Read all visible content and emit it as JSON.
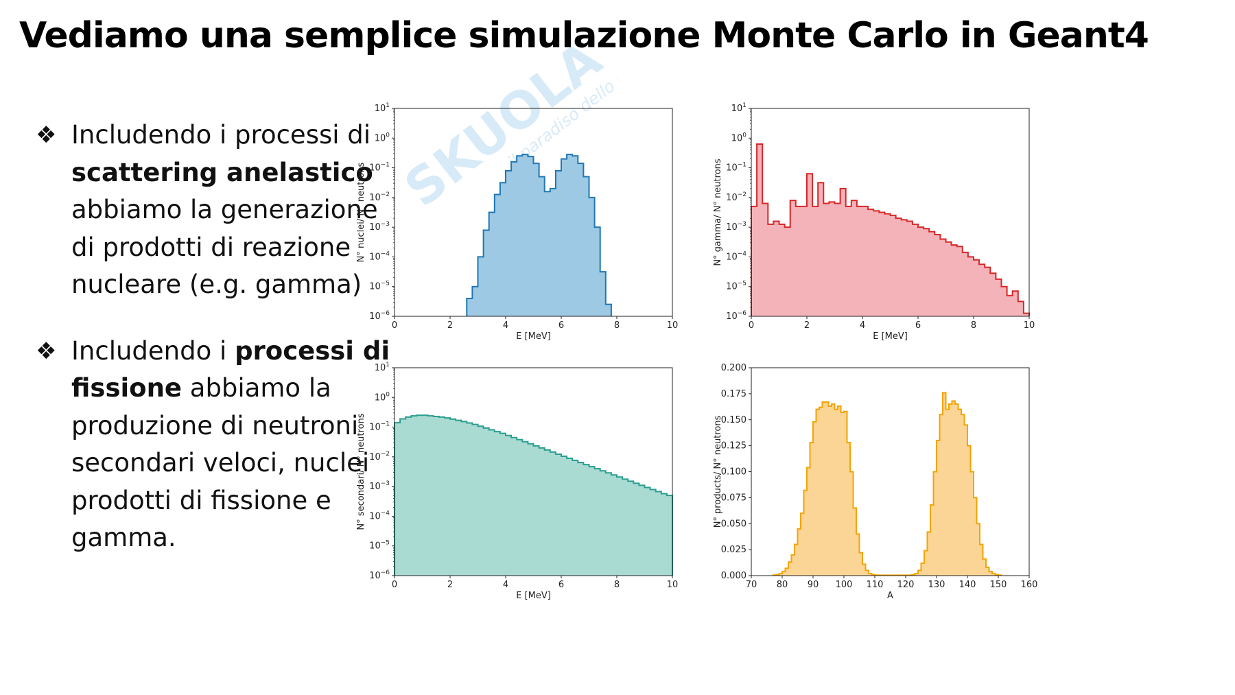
{
  "slide": {
    "title": "Vediamo una semplice simulazione Monte Carlo in Geant4",
    "bullets": [
      {
        "mark": "❖",
        "parts": [
          {
            "text": "Includendo i processi di ",
            "bold": false
          },
          {
            "text": "scattering anelastico",
            "bold": true
          },
          {
            "text": " abbiamo la generazione di prodotti di reazione nucleare (e.g. gamma)",
            "bold": false
          }
        ]
      },
      {
        "mark": "❖",
        "parts": [
          {
            "text": "Includendo i ",
            "bold": false
          },
          {
            "text": "processi di fissione",
            "bold": true
          },
          {
            "text": " abbiamo la produzione di neutroni secondari veloci, nuclei prodotti di fissione e gamma.",
            "bold": false
          }
        ]
      }
    ],
    "watermark": "Skuola.net — il paradiso dello studente"
  },
  "colors": {
    "blue_line": "#1f77b4",
    "blue_fill": "#9dc9e4",
    "red_line": "#d62728",
    "red_fill": "#f4b3b9",
    "teal_line": "#2a9d8f",
    "teal_fill": "#a9dbd2",
    "orange_line": "#f5a300",
    "orange_fill": "#fbd596"
  },
  "chart_data": [
    {
      "id": "nuclei",
      "type": "histogram",
      "scale": "log",
      "xlabel": "E [MeV]",
      "ylabel": "N° nuclei/ N° neutrons",
      "xlim": [
        0,
        10
      ],
      "ylim_exp": [
        -6,
        1
      ],
      "xticks": [
        0,
        2,
        4,
        6,
        8,
        10
      ],
      "yticks_exp": [
        1,
        0,
        -1,
        -2,
        -3,
        -4,
        -5,
        -6
      ],
      "color_key": [
        "blue_line",
        "blue_fill"
      ],
      "bin_width": 0.2,
      "x_start": 2.6,
      "log10_values": [
        -5.4,
        -5.0,
        -4.0,
        -3.1,
        -2.5,
        -1.9,
        -1.5,
        -1.1,
        -0.8,
        -0.6,
        -0.55,
        -0.62,
        -0.85,
        -1.3,
        -1.8,
        -1.7,
        -1.1,
        -0.7,
        -0.55,
        -0.6,
        -0.85,
        -1.3,
        -2.0,
        -3.0,
        -4.5,
        -5.6
      ]
    },
    {
      "id": "gamma",
      "type": "histogram",
      "scale": "log",
      "xlabel": "E [MeV]",
      "ylabel": "N° gamma/ N° neutrons",
      "xlim": [
        0,
        10
      ],
      "ylim_exp": [
        -6,
        1
      ],
      "xticks": [
        0,
        2,
        4,
        6,
        8,
        10
      ],
      "yticks_exp": [
        1,
        0,
        -1,
        -2,
        -3,
        -4,
        -5,
        -6
      ],
      "color_key": [
        "red_line",
        "red_fill"
      ],
      "bin_width": 0.2,
      "x_start": 0.0,
      "log10_values": [
        -2.3,
        -0.2,
        -2.2,
        -2.9,
        -2.8,
        -2.9,
        -3.0,
        -2.1,
        -2.3,
        -2.3,
        -1.2,
        -2.3,
        -1.5,
        -2.2,
        -2.15,
        -2.2,
        -1.7,
        -2.3,
        -2.1,
        -2.3,
        -2.3,
        -2.4,
        -2.45,
        -2.5,
        -2.55,
        -2.6,
        -2.7,
        -2.75,
        -2.8,
        -2.9,
        -3.0,
        -3.05,
        -3.15,
        -3.25,
        -3.4,
        -3.5,
        -3.6,
        -3.65,
        -3.85,
        -4.0,
        -4.1,
        -4.25,
        -4.35,
        -4.55,
        -4.75,
        -5.0,
        -5.3,
        -5.15,
        -5.5,
        -5.9
      ]
    },
    {
      "id": "secondari",
      "type": "histogram",
      "scale": "log",
      "xlabel": "E [MeV]",
      "ylabel": "N° secondari/ N° neutrons",
      "xlim": [
        0,
        10
      ],
      "ylim_exp": [
        -6,
        1
      ],
      "xticks": [
        0,
        2,
        4,
        6,
        8,
        10
      ],
      "yticks_exp": [
        1,
        0,
        -1,
        -2,
        -3,
        -4,
        -5,
        -6
      ],
      "color_key": [
        "teal_line",
        "teal_fill"
      ],
      "bin_width": 0.2,
      "x_start": 0.0,
      "log10_values": [
        -0.85,
        -0.72,
        -0.66,
        -0.62,
        -0.6,
        -0.6,
        -0.62,
        -0.64,
        -0.66,
        -0.69,
        -0.73,
        -0.77,
        -0.81,
        -0.86,
        -0.91,
        -0.97,
        -1.03,
        -1.09,
        -1.15,
        -1.21,
        -1.28,
        -1.35,
        -1.42,
        -1.49,
        -1.56,
        -1.63,
        -1.7,
        -1.77,
        -1.84,
        -1.91,
        -1.98,
        -2.05,
        -2.12,
        -2.19,
        -2.26,
        -2.33,
        -2.4,
        -2.47,
        -2.54,
        -2.61,
        -2.68,
        -2.75,
        -2.82,
        -2.89,
        -2.96,
        -3.03,
        -3.1,
        -3.17,
        -3.24,
        -3.3
      ]
    },
    {
      "id": "products",
      "type": "histogram",
      "scale": "linear",
      "xlabel": "A",
      "ylabel": "N° products/ N° neutrons",
      "xlim": [
        70,
        160
      ],
      "ylim": [
        0,
        0.2
      ],
      "xticks": [
        70,
        80,
        90,
        100,
        110,
        120,
        130,
        140,
        150,
        160
      ],
      "yticks": [
        0.0,
        0.025,
        0.05,
        0.075,
        0.1,
        0.125,
        0.15,
        0.175,
        0.2
      ],
      "ytick_labels": [
        "0.000",
        "0.025",
        "0.050",
        "0.075",
        "0.100",
        "0.125",
        "0.150",
        "0.175",
        "0.200"
      ],
      "color_key": [
        "orange_line",
        "orange_fill"
      ],
      "bin_width": 1,
      "x_start": 77,
      "values": [
        0.0005,
        0.001,
        0.002,
        0.004,
        0.007,
        0.013,
        0.02,
        0.03,
        0.045,
        0.06,
        0.082,
        0.104,
        0.128,
        0.148,
        0.16,
        0.162,
        0.167,
        0.167,
        0.163,
        0.165,
        0.16,
        0.163,
        0.157,
        0.158,
        0.128,
        0.1,
        0.065,
        0.04,
        0.022,
        0.011,
        0.005,
        0.002,
        0.001,
        0.0005,
        0.0004,
        0.0004,
        0.0004,
        0.0004,
        0.0004,
        0.0004,
        0.0004,
        0.0004,
        0.0004,
        0.0004,
        0.0005,
        0.001,
        0.002,
        0.005,
        0.012,
        0.024,
        0.042,
        0.068,
        0.1,
        0.13,
        0.155,
        0.176,
        0.16,
        0.165,
        0.168,
        0.165,
        0.16,
        0.155,
        0.145,
        0.125,
        0.1,
        0.075,
        0.05,
        0.03,
        0.016,
        0.008,
        0.004,
        0.002,
        0.001,
        0.0005
      ]
    }
  ]
}
